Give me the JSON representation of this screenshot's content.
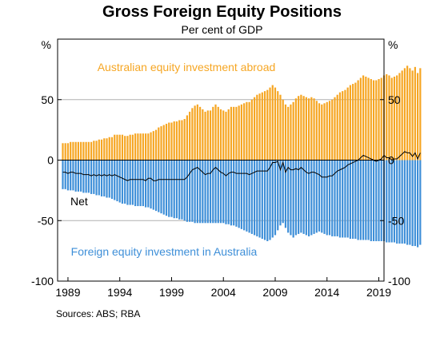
{
  "title": "Gross Foreign Equity Positions",
  "subtitle": "Per cent of GDP",
  "source": "Sources:   ABS; RBA",
  "chart_data": {
    "type": "bar",
    "title": "Gross Foreign Equity Positions",
    "subtitle": "Per cent of GDP",
    "unit_left": "%",
    "unit_right": "%",
    "ylim": [
      -100,
      100
    ],
    "yticks": [
      50,
      0,
      -50,
      -100
    ],
    "ytick_labels": [
      "50",
      "0",
      "-50",
      "-100"
    ],
    "xlim": [
      1988.0,
      2019.5
    ],
    "xticks": [
      1989,
      1994,
      1999,
      2004,
      2009,
      2014,
      2019
    ],
    "xtick_labels": [
      "1989",
      "1994",
      "1999",
      "2004",
      "2009",
      "2014",
      "2019"
    ],
    "grid": true,
    "colors": {
      "abroad": "#f6a623",
      "in_australia": "#3e8fd8",
      "net": "#000000"
    },
    "annotations": [
      {
        "text": "Australian equity investment abroad",
        "color": "#f6a623"
      },
      {
        "text": "Net",
        "color": "#000000"
      },
      {
        "text": "Foreign equity investment in Australia",
        "color": "#3e8fd8"
      }
    ],
    "series": [
      {
        "name": "Australian equity investment abroad",
        "x_start": 1988.5,
        "x_step": 0.25,
        "values": [
          14,
          14,
          14,
          15,
          15,
          15,
          15,
          15,
          15,
          15,
          15,
          15,
          16,
          16,
          17,
          17,
          18,
          18,
          19,
          19,
          21,
          21,
          21,
          21,
          20,
          20,
          21,
          21,
          22,
          22,
          22,
          22,
          22,
          22,
          23,
          24,
          25,
          27,
          28,
          29,
          30,
          31,
          31,
          32,
          32,
          33,
          33,
          34,
          37,
          40,
          43,
          45,
          46,
          44,
          42,
          40,
          41,
          41,
          44,
          46,
          44,
          42,
          41,
          40,
          42,
          44,
          44,
          44,
          45,
          46,
          47,
          48,
          48,
          50,
          52,
          54,
          55,
          56,
          57,
          58,
          60,
          62,
          60,
          57,
          54,
          50,
          46,
          44,
          46,
          48,
          51,
          53,
          54,
          53,
          52,
          51,
          52,
          51,
          49,
          47,
          46,
          47,
          48,
          49,
          50,
          52,
          54,
          56,
          57,
          58,
          60,
          62,
          63,
          64,
          66,
          68,
          70,
          69,
          68,
          67,
          66,
          66,
          67,
          68,
          70,
          71,
          70,
          68,
          69,
          70,
          72,
          74,
          76,
          78,
          76,
          74,
          77,
          72,
          76
        ]
      },
      {
        "name": "Foreign equity investment in Australia",
        "x_start": 1988.5,
        "x_step": 0.25,
        "values": [
          -24,
          -24,
          -25,
          -25,
          -25,
          -26,
          -26,
          -26,
          -27,
          -27,
          -27,
          -28,
          -28,
          -29,
          -29,
          -30,
          -30,
          -31,
          -31,
          -32,
          -33,
          -34,
          -35,
          -36,
          -36,
          -37,
          -37,
          -37,
          -38,
          -38,
          -38,
          -38,
          -39,
          -39,
          -40,
          -41,
          -42,
          -43,
          -44,
          -45,
          -46,
          -47,
          -47,
          -48,
          -48,
          -49,
          -49,
          -50,
          -51,
          -51,
          -51,
          -52,
          -52,
          -52,
          -52,
          -52,
          -52,
          -52,
          -52,
          -52,
          -52,
          -52,
          -52,
          -53,
          -53,
          -54,
          -54,
          -55,
          -56,
          -57,
          -58,
          -59,
          -60,
          -61,
          -62,
          -63,
          -64,
          -65,
          -66,
          -67,
          -66,
          -64,
          -62,
          -58,
          -54,
          -52,
          -56,
          -60,
          -62,
          -64,
          -62,
          -61,
          -60,
          -61,
          -62,
          -63,
          -62,
          -61,
          -60,
          -59,
          -60,
          -61,
          -62,
          -62,
          -63,
          -63,
          -63,
          -64,
          -64,
          -64,
          -64,
          -65,
          -65,
          -65,
          -66,
          -66,
          -66,
          -66,
          -66,
          -67,
          -67,
          -67,
          -67,
          -67,
          -67,
          -68,
          -68,
          -68,
          -68,
          -69,
          -69,
          -69,
          -69,
          -70,
          -70,
          -71,
          -71,
          -72,
          -70
        ]
      },
      {
        "name": "Net",
        "x_start": 1988.5,
        "x_step": 0.25,
        "type": "line",
        "values": [
          -10,
          -10,
          -11,
          -10,
          -10,
          -11,
          -11,
          -11,
          -12,
          -12,
          -12,
          -13,
          -12,
          -13,
          -12,
          -13,
          -12,
          -13,
          -12,
          -13,
          -12,
          -13,
          -14,
          -15,
          -16,
          -17,
          -16,
          -16,
          -16,
          -16,
          -16,
          -16,
          -17,
          -15,
          -15,
          -17,
          -17,
          -16,
          -16,
          -16,
          -16,
          -16,
          -16,
          -16,
          -16,
          -16,
          -16,
          -16,
          -14,
          -11,
          -8,
          -7,
          -6,
          -8,
          -10,
          -12,
          -11,
          -11,
          -8,
          -6,
          -8,
          -10,
          -11,
          -13,
          -11,
          -10,
          -10,
          -11,
          -11,
          -11,
          -11,
          -11,
          -12,
          -11,
          -10,
          -9,
          -9,
          -9,
          -9,
          -9,
          -6,
          -2,
          -2,
          -1,
          -8,
          -2,
          -10,
          -6,
          -8,
          -8,
          -7,
          -8,
          -6,
          -8,
          -10,
          -11,
          -10,
          -10,
          -11,
          -12,
          -14,
          -14,
          -14,
          -13,
          -13,
          -11,
          -9,
          -8,
          -7,
          -6,
          -4,
          -3,
          -2,
          -1,
          0,
          2,
          4,
          3,
          2,
          1,
          0,
          -1,
          0,
          1,
          4,
          2,
          2,
          0,
          1,
          1,
          3,
          5,
          7,
          6,
          6,
          3,
          6,
          1,
          6
        ]
      }
    ]
  }
}
